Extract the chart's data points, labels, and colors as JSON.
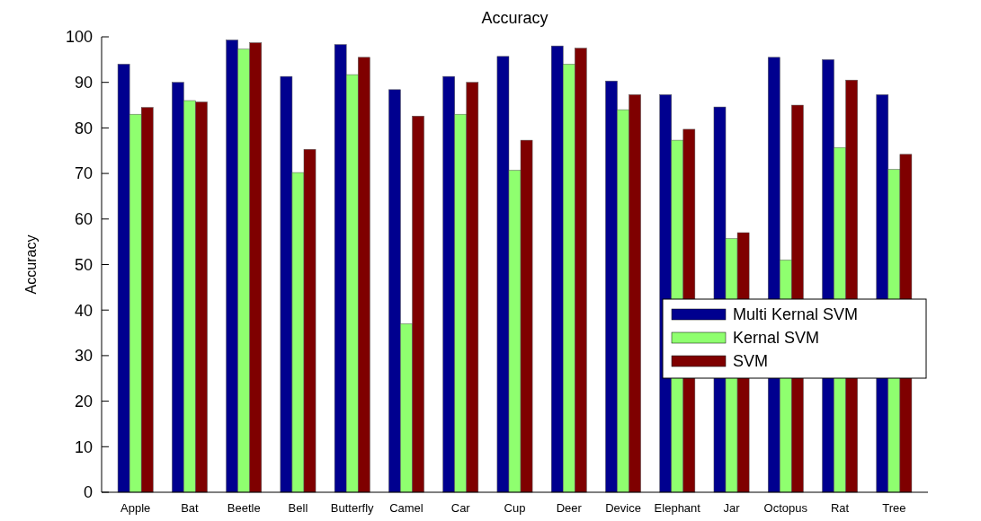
{
  "chart_data": {
    "type": "bar",
    "title": "Accuracy",
    "ylabel": "Accuracy",
    "categories": [
      "Apple",
      "Bat",
      "Beetle",
      "Bell",
      "Butterfly",
      "Camel",
      "Car",
      "Cup",
      "Deer",
      "Device",
      "Elephant",
      "Jar",
      "Octopus",
      "Rat",
      "Tree"
    ],
    "series": [
      {
        "name": "Multi Kernal SVM",
        "color": "#00008f",
        "values": [
          94,
          90,
          99.3,
          91.3,
          98.3,
          88.4,
          91.3,
          95.7,
          98,
          90.3,
          87.3,
          84.6,
          95.5,
          95,
          87.3
        ]
      },
      {
        "name": "Kernal SVM",
        "color": "#8fff6f",
        "values": [
          83,
          86,
          97.3,
          70.2,
          91.7,
          37,
          83,
          70.7,
          94,
          84,
          77.3,
          55.7,
          51,
          75.7,
          70.9
        ]
      },
      {
        "name": "SVM",
        "color": "#7f0000",
        "values": [
          84.5,
          85.7,
          98.7,
          75.3,
          95.5,
          82.6,
          90,
          77.3,
          97.5,
          87.3,
          79.7,
          57,
          85,
          90.5,
          74.2
        ]
      }
    ],
    "ylim": [
      0,
      100
    ],
    "yticks": [
      0,
      10,
      20,
      30,
      40,
      50,
      60,
      70,
      80,
      90,
      100
    ],
    "legend": "right"
  }
}
